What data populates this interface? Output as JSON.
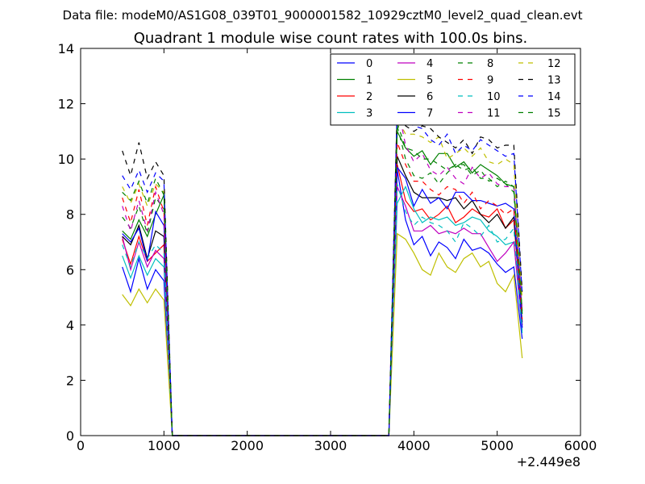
{
  "chart_data": {
    "type": "line",
    "suptitle": "Data file: modeM0/AS1G08_039T01_9000001582_10929cztM0_level2_quad_clean.evt",
    "title": "Quadrant 1 module wise count rates with 100.0s bins.",
    "xlabel": "",
    "ylabel": "",
    "x_offset_label": "+2.449e8",
    "xlim": [
      0,
      6000
    ],
    "ylim": [
      0,
      14
    ],
    "xticks": [
      0,
      1000,
      2000,
      3000,
      4000,
      5000,
      6000
    ],
    "yticks": [
      0,
      2,
      4,
      6,
      8,
      10,
      12,
      14
    ],
    "grid": false,
    "legend_position": "top-right",
    "legend_columns": 4,
    "x": [
      500,
      600,
      700,
      800,
      900,
      1000,
      1100,
      1200,
      1300,
      1400,
      1500,
      1600,
      1700,
      1800,
      1900,
      2000,
      2100,
      2200,
      2300,
      2400,
      2500,
      2600,
      2700,
      2800,
      2900,
      3000,
      3100,
      3200,
      3300,
      3400,
      3500,
      3600,
      3700,
      3800,
      3900,
      4000,
      4100,
      4200,
      4300,
      4400,
      4500,
      4600,
      4700,
      4800,
      4900,
      5000,
      5100,
      5200,
      5300
    ],
    "series": [
      {
        "name": "0",
        "color": "#0000ff",
        "dash": "solid",
        "values": [
          6.1,
          5.2,
          6.4,
          5.3,
          6.0,
          5.6,
          0,
          0,
          0,
          0,
          0,
          0,
          0,
          0,
          0,
          0,
          0,
          0,
          0,
          0,
          0,
          0,
          0,
          0,
          0,
          0,
          0,
          0,
          0,
          0,
          0,
          0,
          0,
          9.6,
          7.8,
          6.9,
          7.2,
          6.5,
          7.0,
          6.8,
          6.4,
          7.1,
          6.7,
          6.8,
          6.6,
          6.2,
          5.9,
          6.1,
          3.5
        ]
      },
      {
        "name": "1",
        "color": "#008000",
        "dash": "solid",
        "values": [
          7.4,
          7.1,
          7.8,
          7.2,
          8.0,
          8.7,
          0,
          0,
          0,
          0,
          0,
          0,
          0,
          0,
          0,
          0,
          0,
          0,
          0,
          0,
          0,
          0,
          0,
          0,
          0,
          0,
          0,
          0,
          0,
          0,
          0,
          0,
          0,
          11.0,
          10.4,
          10.1,
          10.3,
          9.8,
          10.2,
          10.2,
          9.7,
          9.9,
          9.5,
          9.8,
          9.6,
          9.4,
          9.1,
          9.0,
          4.5
        ]
      },
      {
        "name": "2",
        "color": "#ff0000",
        "dash": "solid",
        "values": [
          7.1,
          6.2,
          7.2,
          6.3,
          6.6,
          6.9,
          0,
          0,
          0,
          0,
          0,
          0,
          0,
          0,
          0,
          0,
          0,
          0,
          0,
          0,
          0,
          0,
          0,
          0,
          0,
          0,
          0,
          0,
          0,
          0,
          0,
          0,
          0,
          9.8,
          8.5,
          8.1,
          8.2,
          7.8,
          8.0,
          8.3,
          7.7,
          7.9,
          8.2,
          8.0,
          7.9,
          8.2,
          7.5,
          7.8,
          4.0
        ]
      },
      {
        "name": "3",
        "color": "#00bfbf",
        "dash": "solid",
        "values": [
          6.5,
          5.7,
          6.5,
          5.8,
          6.4,
          6.1,
          0,
          0,
          0,
          0,
          0,
          0,
          0,
          0,
          0,
          0,
          0,
          0,
          0,
          0,
          0,
          0,
          0,
          0,
          0,
          0,
          0,
          0,
          0,
          0,
          0,
          0,
          0,
          8.4,
          9.0,
          8.2,
          7.7,
          7.9,
          7.8,
          7.9,
          7.6,
          7.7,
          7.9,
          7.8,
          7.4,
          7.2,
          6.9,
          7.0,
          3.8
        ]
      },
      {
        "name": "4",
        "color": "#bf00bf",
        "dash": "solid",
        "values": [
          7.2,
          6.0,
          7.0,
          6.1,
          6.7,
          6.4,
          0,
          0,
          0,
          0,
          0,
          0,
          0,
          0,
          0,
          0,
          0,
          0,
          0,
          0,
          0,
          0,
          0,
          0,
          0,
          0,
          0,
          0,
          0,
          0,
          0,
          0,
          0,
          9.0,
          8.3,
          7.4,
          7.4,
          7.6,
          7.3,
          7.4,
          7.3,
          7.5,
          7.3,
          7.3,
          6.8,
          6.3,
          6.6,
          7.0,
          3.9
        ]
      },
      {
        "name": "5",
        "color": "#bfbf00",
        "dash": "solid",
        "values": [
          5.1,
          4.7,
          5.3,
          4.8,
          5.3,
          4.9,
          0,
          0,
          0,
          0,
          0,
          0,
          0,
          0,
          0,
          0,
          0,
          0,
          0,
          0,
          0,
          0,
          0,
          0,
          0,
          0,
          0,
          0,
          0,
          0,
          0,
          0,
          0,
          7.3,
          7.1,
          6.6,
          6.0,
          5.8,
          6.6,
          6.1,
          5.9,
          6.4,
          6.6,
          6.1,
          6.3,
          5.5,
          5.2,
          5.8,
          2.8
        ]
      },
      {
        "name": "6",
        "color": "#000000",
        "dash": "solid",
        "values": [
          7.2,
          6.9,
          7.6,
          6.4,
          7.4,
          7.2,
          0,
          0,
          0,
          0,
          0,
          0,
          0,
          0,
          0,
          0,
          0,
          0,
          0,
          0,
          0,
          0,
          0,
          0,
          0,
          0,
          0,
          0,
          0,
          0,
          0,
          0,
          0,
          10.1,
          9.4,
          8.8,
          8.6,
          8.6,
          8.6,
          8.5,
          8.6,
          8.2,
          8.5,
          8.0,
          7.7,
          8.0,
          7.5,
          7.9,
          4.1
        ]
      },
      {
        "name": "7",
        "color": "#0000ff",
        "dash": "solid",
        "values": [
          7.3,
          7.0,
          7.5,
          6.3,
          8.1,
          7.6,
          0,
          0,
          0,
          0,
          0,
          0,
          0,
          0,
          0,
          0,
          0,
          0,
          0,
          0,
          0,
          0,
          0,
          0,
          0,
          0,
          0,
          0,
          0,
          0,
          0,
          0,
          0,
          9.7,
          9.3,
          8.3,
          8.9,
          8.4,
          8.6,
          8.2,
          8.8,
          8.8,
          8.5,
          8.5,
          8.4,
          8.3,
          8.4,
          8.2,
          3.9
        ]
      },
      {
        "name": "8",
        "color": "#008000",
        "dash": "dashed",
        "values": [
          7.9,
          7.5,
          8.3,
          7.3,
          8.6,
          8.2,
          0,
          0,
          0,
          0,
          0,
          0,
          0,
          0,
          0,
          0,
          0,
          0,
          0,
          0,
          0,
          0,
          0,
          0,
          0,
          0,
          0,
          0,
          0,
          0,
          0,
          0,
          0,
          11.2,
          10.0,
          9.4,
          9.3,
          9.5,
          9.1,
          9.5,
          9.8,
          9.8,
          9.4,
          9.6,
          9.2,
          9.3,
          9.1,
          8.8,
          4.4
        ]
      },
      {
        "name": "9",
        "color": "#ff0000",
        "dash": "dashed",
        "values": [
          8.6,
          7.7,
          8.9,
          7.6,
          9.0,
          8.1,
          0,
          0,
          0,
          0,
          0,
          0,
          0,
          0,
          0,
          0,
          0,
          0,
          0,
          0,
          0,
          0,
          0,
          0,
          0,
          0,
          0,
          0,
          0,
          0,
          0,
          0,
          0,
          10.6,
          9.8,
          9.2,
          9.2,
          8.9,
          8.7,
          9.0,
          8.9,
          8.4,
          8.8,
          8.2,
          8.5,
          8.3,
          8.0,
          8.2,
          4.2
        ]
      },
      {
        "name": "10",
        "color": "#00bfbf",
        "dash": "dashed",
        "values": [
          6.9,
          6.1,
          7.0,
          6.4,
          6.9,
          6.6,
          0,
          0,
          0,
          0,
          0,
          0,
          0,
          0,
          0,
          0,
          0,
          0,
          0,
          0,
          0,
          0,
          0,
          0,
          0,
          0,
          0,
          0,
          0,
          0,
          0,
          0,
          0,
          9.1,
          8.1,
          7.6,
          7.9,
          7.7,
          7.6,
          7.4,
          7.0,
          7.7,
          7.5,
          7.2,
          7.6,
          7.0,
          7.1,
          7.5,
          3.7
        ]
      },
      {
        "name": "11",
        "color": "#bf00bf",
        "dash": "dashed",
        "values": [
          8.3,
          7.4,
          8.5,
          7.4,
          8.8,
          8.0,
          0,
          0,
          0,
          0,
          0,
          0,
          0,
          0,
          0,
          0,
          0,
          0,
          0,
          0,
          0,
          0,
          0,
          0,
          0,
          0,
          0,
          0,
          0,
          0,
          0,
          0,
          0,
          12.0,
          10.5,
          9.9,
          10.2,
          9.6,
          9.4,
          9.7,
          9.3,
          9.1,
          9.7,
          9.3,
          9.5,
          9.1,
          9.0,
          9.0,
          4.5
        ]
      },
      {
        "name": "12",
        "color": "#bfbf00",
        "dash": "dashed",
        "values": [
          9.0,
          8.4,
          9.1,
          8.3,
          9.1,
          8.8,
          0,
          0,
          0,
          0,
          0,
          0,
          0,
          0,
          0,
          0,
          0,
          0,
          0,
          0,
          0,
          0,
          0,
          0,
          0,
          0,
          0,
          0,
          0,
          0,
          0,
          0,
          0,
          11.5,
          10.9,
          10.9,
          10.8,
          10.6,
          10.8,
          10.0,
          10.2,
          10.4,
          10.1,
          10.4,
          9.9,
          9.8,
          10.0,
          9.8,
          4.9
        ]
      },
      {
        "name": "13",
        "color": "#000000",
        "dash": "dashed",
        "values": [
          10.3,
          9.4,
          10.6,
          9.3,
          9.9,
          9.4,
          0,
          0,
          0,
          0,
          0,
          0,
          0,
          0,
          0,
          0,
          0,
          0,
          0,
          0,
          0,
          0,
          0,
          0,
          0,
          0,
          0,
          0,
          0,
          0,
          0,
          0,
          0,
          11.9,
          11.2,
          11.0,
          11.2,
          11.1,
          10.8,
          10.6,
          10.4,
          10.7,
          10.2,
          10.8,
          10.7,
          10.4,
          10.5,
          10.5,
          5.2
        ]
      },
      {
        "name": "14",
        "color": "#0000ff",
        "dash": "dashed",
        "values": [
          9.4,
          8.9,
          9.6,
          8.8,
          9.5,
          9.2,
          0,
          0,
          0,
          0,
          0,
          0,
          0,
          0,
          0,
          0,
          0,
          0,
          0,
          0,
          0,
          0,
          0,
          0,
          0,
          0,
          0,
          0,
          0,
          0,
          0,
          0,
          0,
          12.0,
          11.4,
          11.2,
          11.1,
          10.7,
          10.5,
          10.9,
          10.2,
          10.5,
          10.3,
          10.7,
          10.5,
          10.3,
          10.1,
          10.2,
          5.1
        ]
      },
      {
        "name": "15",
        "color": "#008000",
        "dash": "dashed",
        "values": [
          8.8,
          8.5,
          9.2,
          8.4,
          9.3,
          8.7,
          0,
          0,
          0,
          0,
          0,
          0,
          0,
          0,
          0,
          0,
          0,
          0,
          0,
          0,
          0,
          0,
          0,
          0,
          0,
          0,
          0,
          0,
          0,
          0,
          0,
          0,
          0,
          11.3,
          10.4,
          10.3,
          10.0,
          10.0,
          9.8,
          9.6,
          9.8,
          9.6,
          9.7,
          9.3,
          9.3,
          9.0,
          9.2,
          9.0,
          4.4
        ]
      }
    ]
  }
}
